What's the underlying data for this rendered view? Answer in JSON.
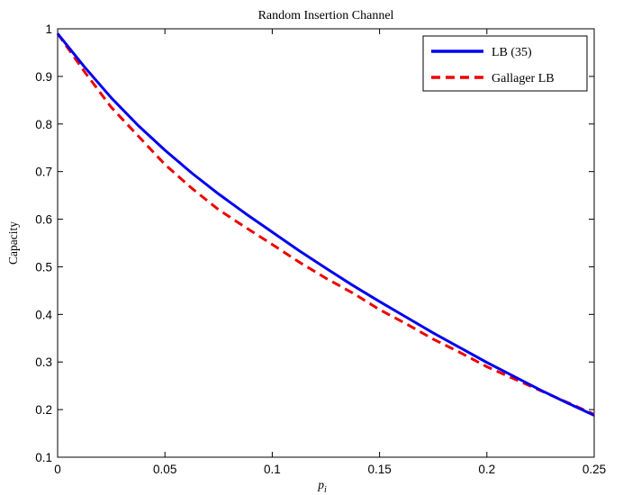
{
  "chart_data": {
    "type": "line",
    "title": "Random Insertion Channel",
    "xlabel": "p",
    "xlabel_subscript": "i",
    "ylabel": "Capacity",
    "xlim": [
      0,
      0.25
    ],
    "ylim": [
      0.1,
      1
    ],
    "xticks": [
      0,
      0.05,
      0.1,
      0.15,
      0.2,
      0.25
    ],
    "xtick_labels": [
      "0",
      "0.05",
      "0.1",
      "0.15",
      "0.2",
      "0.25"
    ],
    "yticks": [
      0.1,
      0.2,
      0.3,
      0.4,
      0.5,
      0.6,
      0.7,
      0.8,
      0.9,
      1
    ],
    "ytick_labels": [
      "0.1",
      "0.2",
      "0.3",
      "0.4",
      "0.5",
      "0.6",
      "0.7",
      "0.8",
      "0.9",
      "1"
    ],
    "grid": false,
    "legend_position": "top-right",
    "series": [
      {
        "name": "LB (35)",
        "color": "#0000ee",
        "style": "solid",
        "x": [
          0,
          0.0125,
          0.025,
          0.0375,
          0.05,
          0.0625,
          0.075,
          0.0875,
          0.1,
          0.1125,
          0.125,
          0.1375,
          0.15,
          0.1625,
          0.175,
          0.1875,
          0.2,
          0.2125,
          0.225,
          0.2375,
          0.25
        ],
        "y": [
          0.99,
          0.92,
          0.855,
          0.797,
          0.745,
          0.697,
          0.653,
          0.612,
          0.573,
          0.534,
          0.497,
          0.461,
          0.427,
          0.394,
          0.361,
          0.33,
          0.299,
          0.27,
          0.241,
          0.214,
          0.188
        ]
      },
      {
        "name": "Gallager LB",
        "color": "#ee0000",
        "style": "dashed",
        "x": [
          0,
          0.0125,
          0.025,
          0.0375,
          0.05,
          0.0625,
          0.075,
          0.0875,
          0.1,
          0.1125,
          0.125,
          0.1375,
          0.15,
          0.1625,
          0.175,
          0.1875,
          0.2,
          0.2125,
          0.225,
          0.2375,
          0.25
        ],
        "y": [
          0.99,
          0.91,
          0.835,
          0.775,
          0.715,
          0.665,
          0.62,
          0.583,
          0.547,
          0.51,
          0.476,
          0.445,
          0.41,
          0.38,
          0.348,
          0.32,
          0.29,
          0.265,
          0.24,
          0.215,
          0.19
        ]
      }
    ]
  }
}
